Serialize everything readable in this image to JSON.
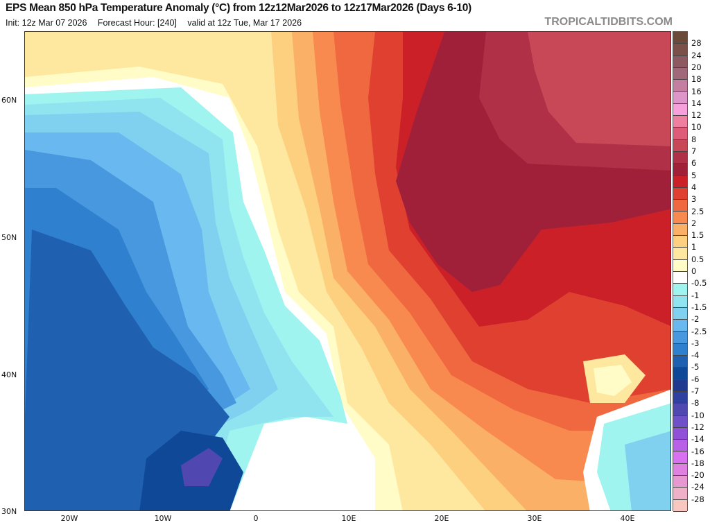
{
  "header": {
    "title": "EPS Mean 850 hPa Temperature Anomaly (°C) from 12z12Mar2026 to 12z17Mar2026 (Days 6-10)",
    "init": "Init: 12z Mar 07 2026",
    "forecast_hour": "Forecast Hour: [240]",
    "valid": "valid at 12z Tue, Mar 17 2026",
    "brand": "TROPICALTIDBITS.COM"
  },
  "axes": {
    "lat_labels": [
      "60N",
      "50N",
      "40N",
      "30N"
    ],
    "lon_labels": [
      "20W",
      "10W",
      "0",
      "10E",
      "20E",
      "30E",
      "40E"
    ]
  },
  "colorbar": {
    "labels": [
      "28",
      "24",
      "20",
      "18",
      "16",
      "14",
      "12",
      "10",
      "8",
      "7",
      "6",
      "5",
      "4",
      "3",
      "2.5",
      "2",
      "1.5",
      "1",
      "0.5",
      "0",
      "-0.5",
      "-1",
      "-1.5",
      "-2",
      "-2.5",
      "-3",
      "-4",
      "-5",
      "-6",
      "-7",
      "-8",
      "-10",
      "-12",
      "-14",
      "-16",
      "-18",
      "-20",
      "-24",
      "-28"
    ],
    "colors": [
      "#6b4a3a",
      "#7a5048",
      "#8e5a62",
      "#a06878",
      "#c47fa0",
      "#de96c8",
      "#f7a0dc",
      "#ef7fa0",
      "#de5c78",
      "#c84858",
      "#b03048",
      "#a0203a",
      "#cc2028",
      "#e04030",
      "#f06840",
      "#f88a50",
      "#fbb068",
      "#fdd080",
      "#fee8a0",
      "#fffcc8",
      "#ffffff",
      "#a0f4f0",
      "#90e4f0",
      "#80d0f0",
      "#6ab8f0",
      "#4898e0",
      "#3080d0",
      "#2060b0",
      "#104898",
      "#203890",
      "#3040a0",
      "#5048b0",
      "#7050c8",
      "#9050d8",
      "#b860e8",
      "#d870f0",
      "#e080e0",
      "#e898d0",
      "#f0b0c8",
      "#f8c8c0"
    ]
  }
}
